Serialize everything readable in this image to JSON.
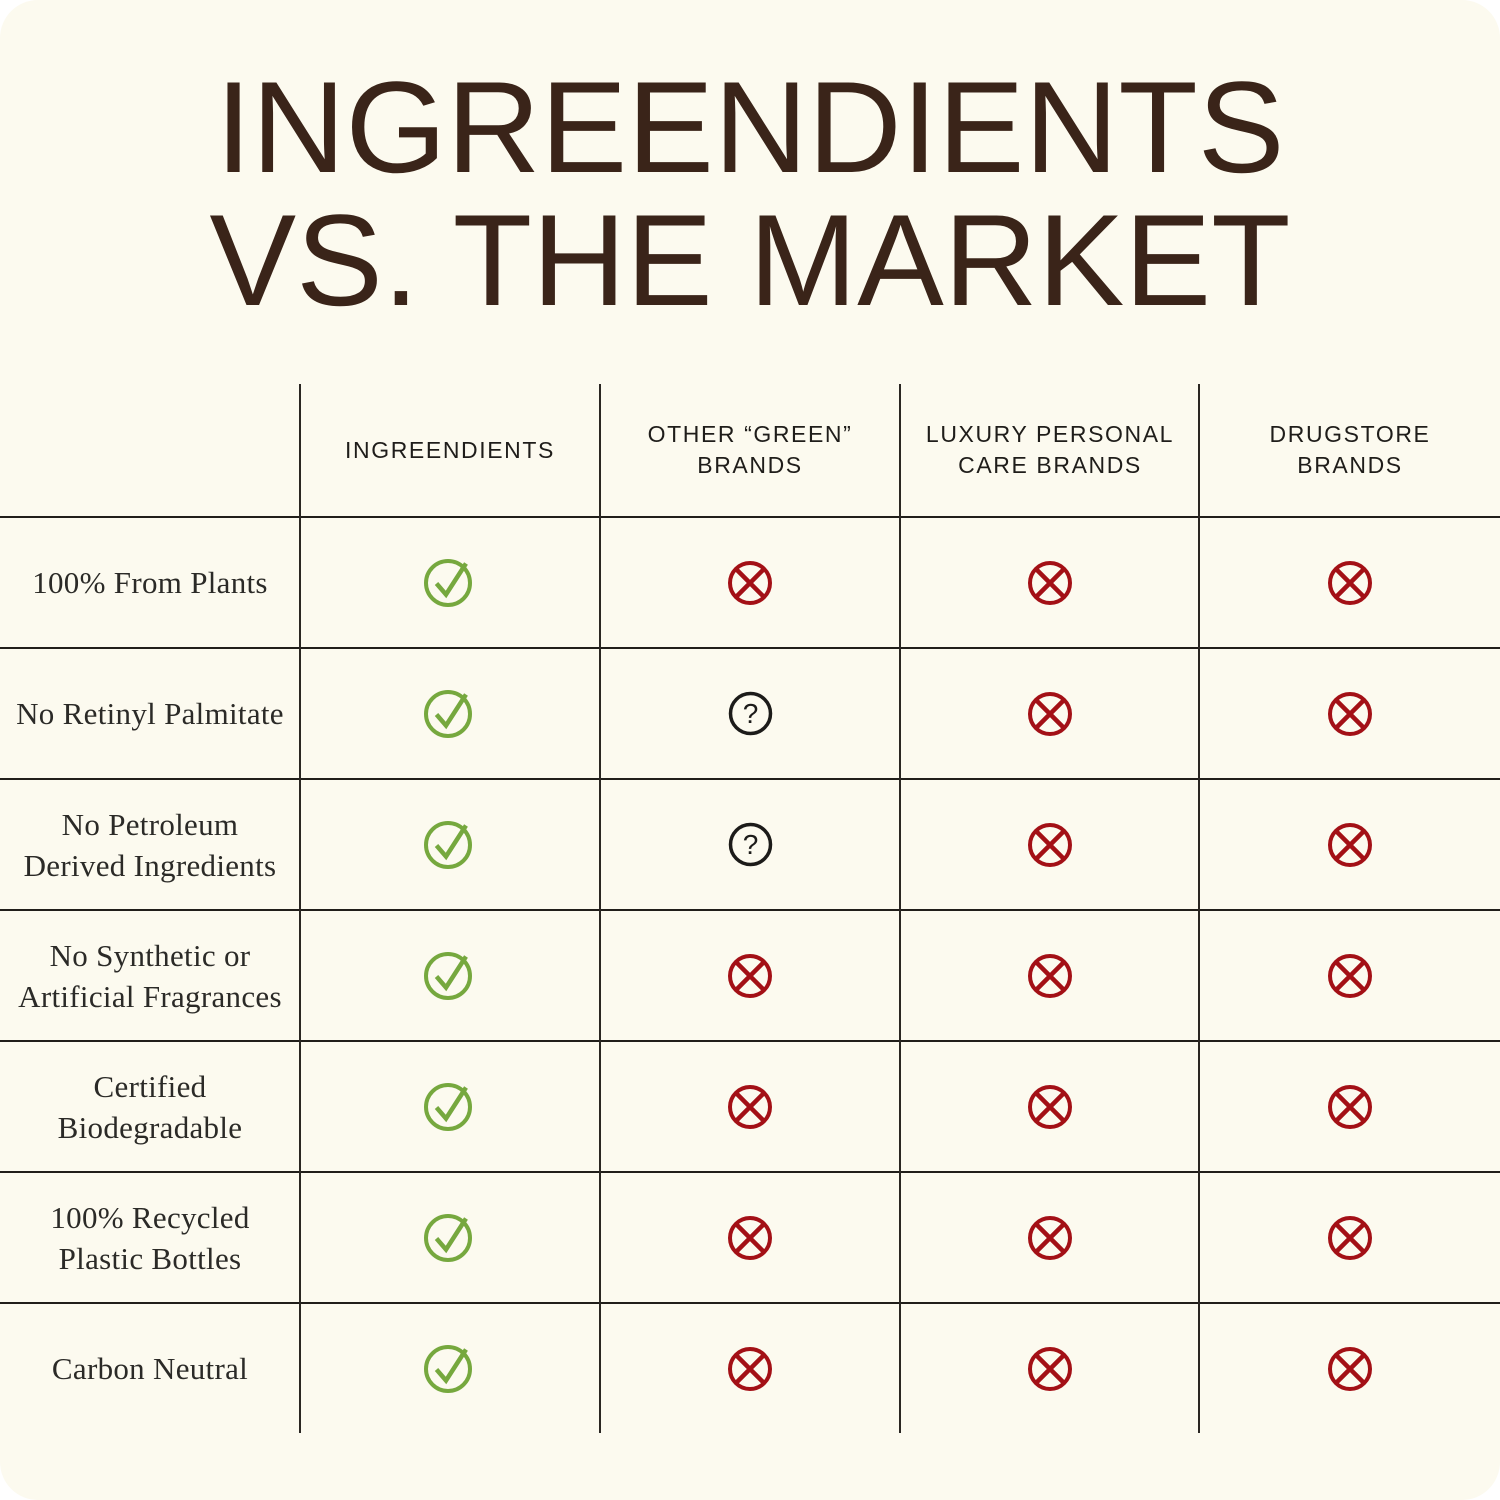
{
  "title": {
    "line1": "INGREENDIENTS",
    "line2": "VS. THE MARKET"
  },
  "table": {
    "columns": [
      {
        "line1": "INGREENDIENTS",
        "line2": ""
      },
      {
        "line1": "OTHER “GREEN”",
        "line2": "BRANDS"
      },
      {
        "line1": "LUXURY PERSONAL",
        "line2": "CARE BRANDS"
      },
      {
        "line1": "DRUGSTORE",
        "line2": "BRANDS"
      }
    ],
    "rows": [
      {
        "lines": [
          "100% From Plants",
          ""
        ],
        "values": [
          "check",
          "cross",
          "cross",
          "cross"
        ]
      },
      {
        "lines": [
          "No Retinyl Palmitate",
          ""
        ],
        "values": [
          "check",
          "question",
          "cross",
          "cross"
        ]
      },
      {
        "lines": [
          "No Petroleum",
          "Derived Ingredients"
        ],
        "values": [
          "check",
          "question",
          "cross",
          "cross"
        ]
      },
      {
        "lines": [
          "No Synthetic or",
          "Artificial Fragrances"
        ],
        "values": [
          "check",
          "cross",
          "cross",
          "cross"
        ]
      },
      {
        "lines": [
          "Certified Biodegradable",
          ""
        ],
        "values": [
          "check",
          "cross",
          "cross",
          "cross"
        ]
      },
      {
        "lines": [
          "100% Recycled",
          "Plastic Bottles"
        ],
        "values": [
          "check",
          "cross",
          "cross",
          "cross"
        ]
      },
      {
        "lines": [
          "Carbon Neutral",
          ""
        ],
        "values": [
          "check",
          "cross",
          "cross",
          "cross"
        ]
      }
    ]
  },
  "icons": {
    "check": "check-circle-icon",
    "cross": "cross-circle-icon",
    "question": "question-circle-icon"
  },
  "colors": {
    "background": "#FCFAEF",
    "title": "#3A2419",
    "grid_line": "#211E1A",
    "header_text": "#1F1D1A",
    "label_text": "#2B2A27",
    "check": "#76A83E",
    "cross": "#A31016",
    "question": "#1C1B19"
  },
  "chart_data": {
    "type": "table",
    "title": "INGREENDIENTS VS. THE MARKET",
    "columns": [
      "",
      "INGREENDIENTS",
      "OTHER “GREEN” BRANDS",
      "LUXURY PERSONAL CARE BRANDS",
      "DRUGSTORE BRANDS"
    ],
    "rows": [
      [
        "100% From Plants",
        "yes",
        "no",
        "no",
        "no"
      ],
      [
        "No Retinyl Palmitate",
        "yes",
        "unknown",
        "no",
        "no"
      ],
      [
        "No Petroleum Derived Ingredients",
        "yes",
        "unknown",
        "no",
        "no"
      ],
      [
        "No Synthetic or Artificial Fragrances",
        "yes",
        "no",
        "no",
        "no"
      ],
      [
        "Certified Biodegradable",
        "yes",
        "no",
        "no",
        "no"
      ],
      [
        "100% Recycled Plastic Bottles",
        "yes",
        "no",
        "no",
        "no"
      ],
      [
        "Carbon Neutral",
        "yes",
        "no",
        "no",
        "no"
      ]
    ],
    "legend": {
      "check": "yes",
      "cross": "no",
      "question": "unknown"
    }
  }
}
